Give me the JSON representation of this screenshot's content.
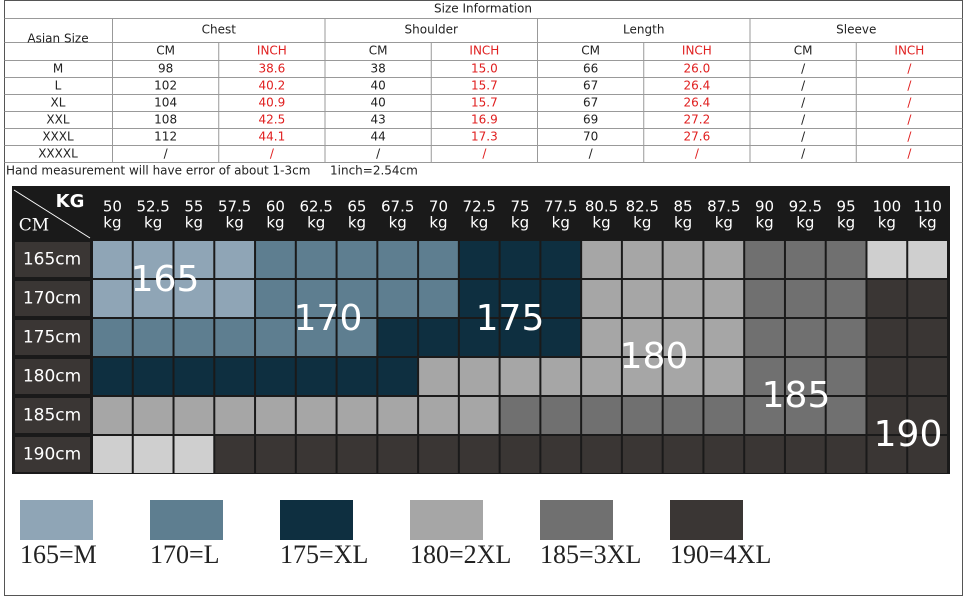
{
  "title": "Size Information",
  "table": {
    "size_header": "Asian Size",
    "groups": [
      "Chest",
      "Shoulder",
      "Length",
      "Sleeve"
    ],
    "units": [
      "CM",
      "INCH"
    ],
    "rows": [
      [
        "M",
        "98",
        "38.6",
        "38",
        "15.0",
        "66",
        "26.0",
        "/",
        "/"
      ],
      [
        "L",
        "102",
        "40.2",
        "40",
        "15.7",
        "67",
        "26.4",
        "/",
        "/"
      ],
      [
        "XL",
        "104",
        "40.9",
        "40",
        "15.7",
        "67",
        "26.4",
        "/",
        "/"
      ],
      [
        "XXL",
        "108",
        "42.5",
        "43",
        "16.9",
        "69",
        "27.2",
        "/",
        "/"
      ],
      [
        "XXXL",
        "112",
        "44.1",
        "44",
        "17.3",
        "70",
        "27.6",
        "/",
        "/"
      ],
      [
        "XXXXL",
        "/",
        "/",
        "/",
        "/",
        "/",
        "/",
        "/",
        "/"
      ]
    ]
  },
  "note": "Hand measurement will have error of about 1-3cm",
  "conversion": "1inch=2.54cm",
  "grid": {
    "kg_label": "KG",
    "cm_label": "CM",
    "unit": "kg",
    "weights": [
      "50",
      "52.5",
      "55",
      "57.5",
      "60",
      "62.5",
      "65",
      "67.5",
      "70",
      "72.5",
      "75",
      "77.5",
      "80.5",
      "82.5",
      "85",
      "87.5",
      "90",
      "92.5",
      "95",
      "100",
      "110"
    ],
    "heights": [
      "165cm",
      "170cm",
      "175cm",
      "180cm",
      "185cm",
      "190cm"
    ],
    "cells": [
      [
        0,
        0,
        0,
        0,
        1,
        1,
        1,
        1,
        1,
        2,
        2,
        2,
        3,
        3,
        3,
        3,
        4,
        4,
        4,
        null,
        null
      ],
      [
        0,
        0,
        0,
        0,
        1,
        1,
        1,
        1,
        1,
        2,
        2,
        2,
        3,
        3,
        3,
        3,
        4,
        4,
        4,
        5,
        5
      ],
      [
        1,
        1,
        1,
        1,
        1,
        1,
        1,
        2,
        2,
        2,
        2,
        2,
        3,
        3,
        3,
        3,
        4,
        4,
        4,
        5,
        5
      ],
      [
        2,
        2,
        2,
        2,
        2,
        2,
        2,
        2,
        3,
        3,
        3,
        3,
        3,
        3,
        3,
        3,
        4,
        4,
        4,
        5,
        5
      ],
      [
        3,
        3,
        3,
        3,
        3,
        3,
        3,
        3,
        3,
        3,
        4,
        4,
        4,
        4,
        4,
        4,
        4,
        4,
        4,
        5,
        5
      ],
      [
        null,
        null,
        null,
        5,
        5,
        5,
        5,
        5,
        5,
        5,
        5,
        5,
        5,
        5,
        5,
        5,
        5,
        5,
        5,
        5,
        5
      ]
    ],
    "empty_color": "#cfcfcf",
    "zone_labels": [
      "165",
      "170",
      "175",
      "180",
      "185",
      "190"
    ]
  },
  "legend": [
    {
      "label": "165=M",
      "color": "#8fa5b6"
    },
    {
      "label": "170=L",
      "color": "#5e7e90"
    },
    {
      "label": "175=XL",
      "color": "#0e2f40"
    },
    {
      "label": "180=2XL",
      "color": "#a6a6a6"
    },
    {
      "label": "185=3XL",
      "color": "#707070"
    },
    {
      "label": "190=4XL",
      "color": "#3a3634"
    }
  ]
}
